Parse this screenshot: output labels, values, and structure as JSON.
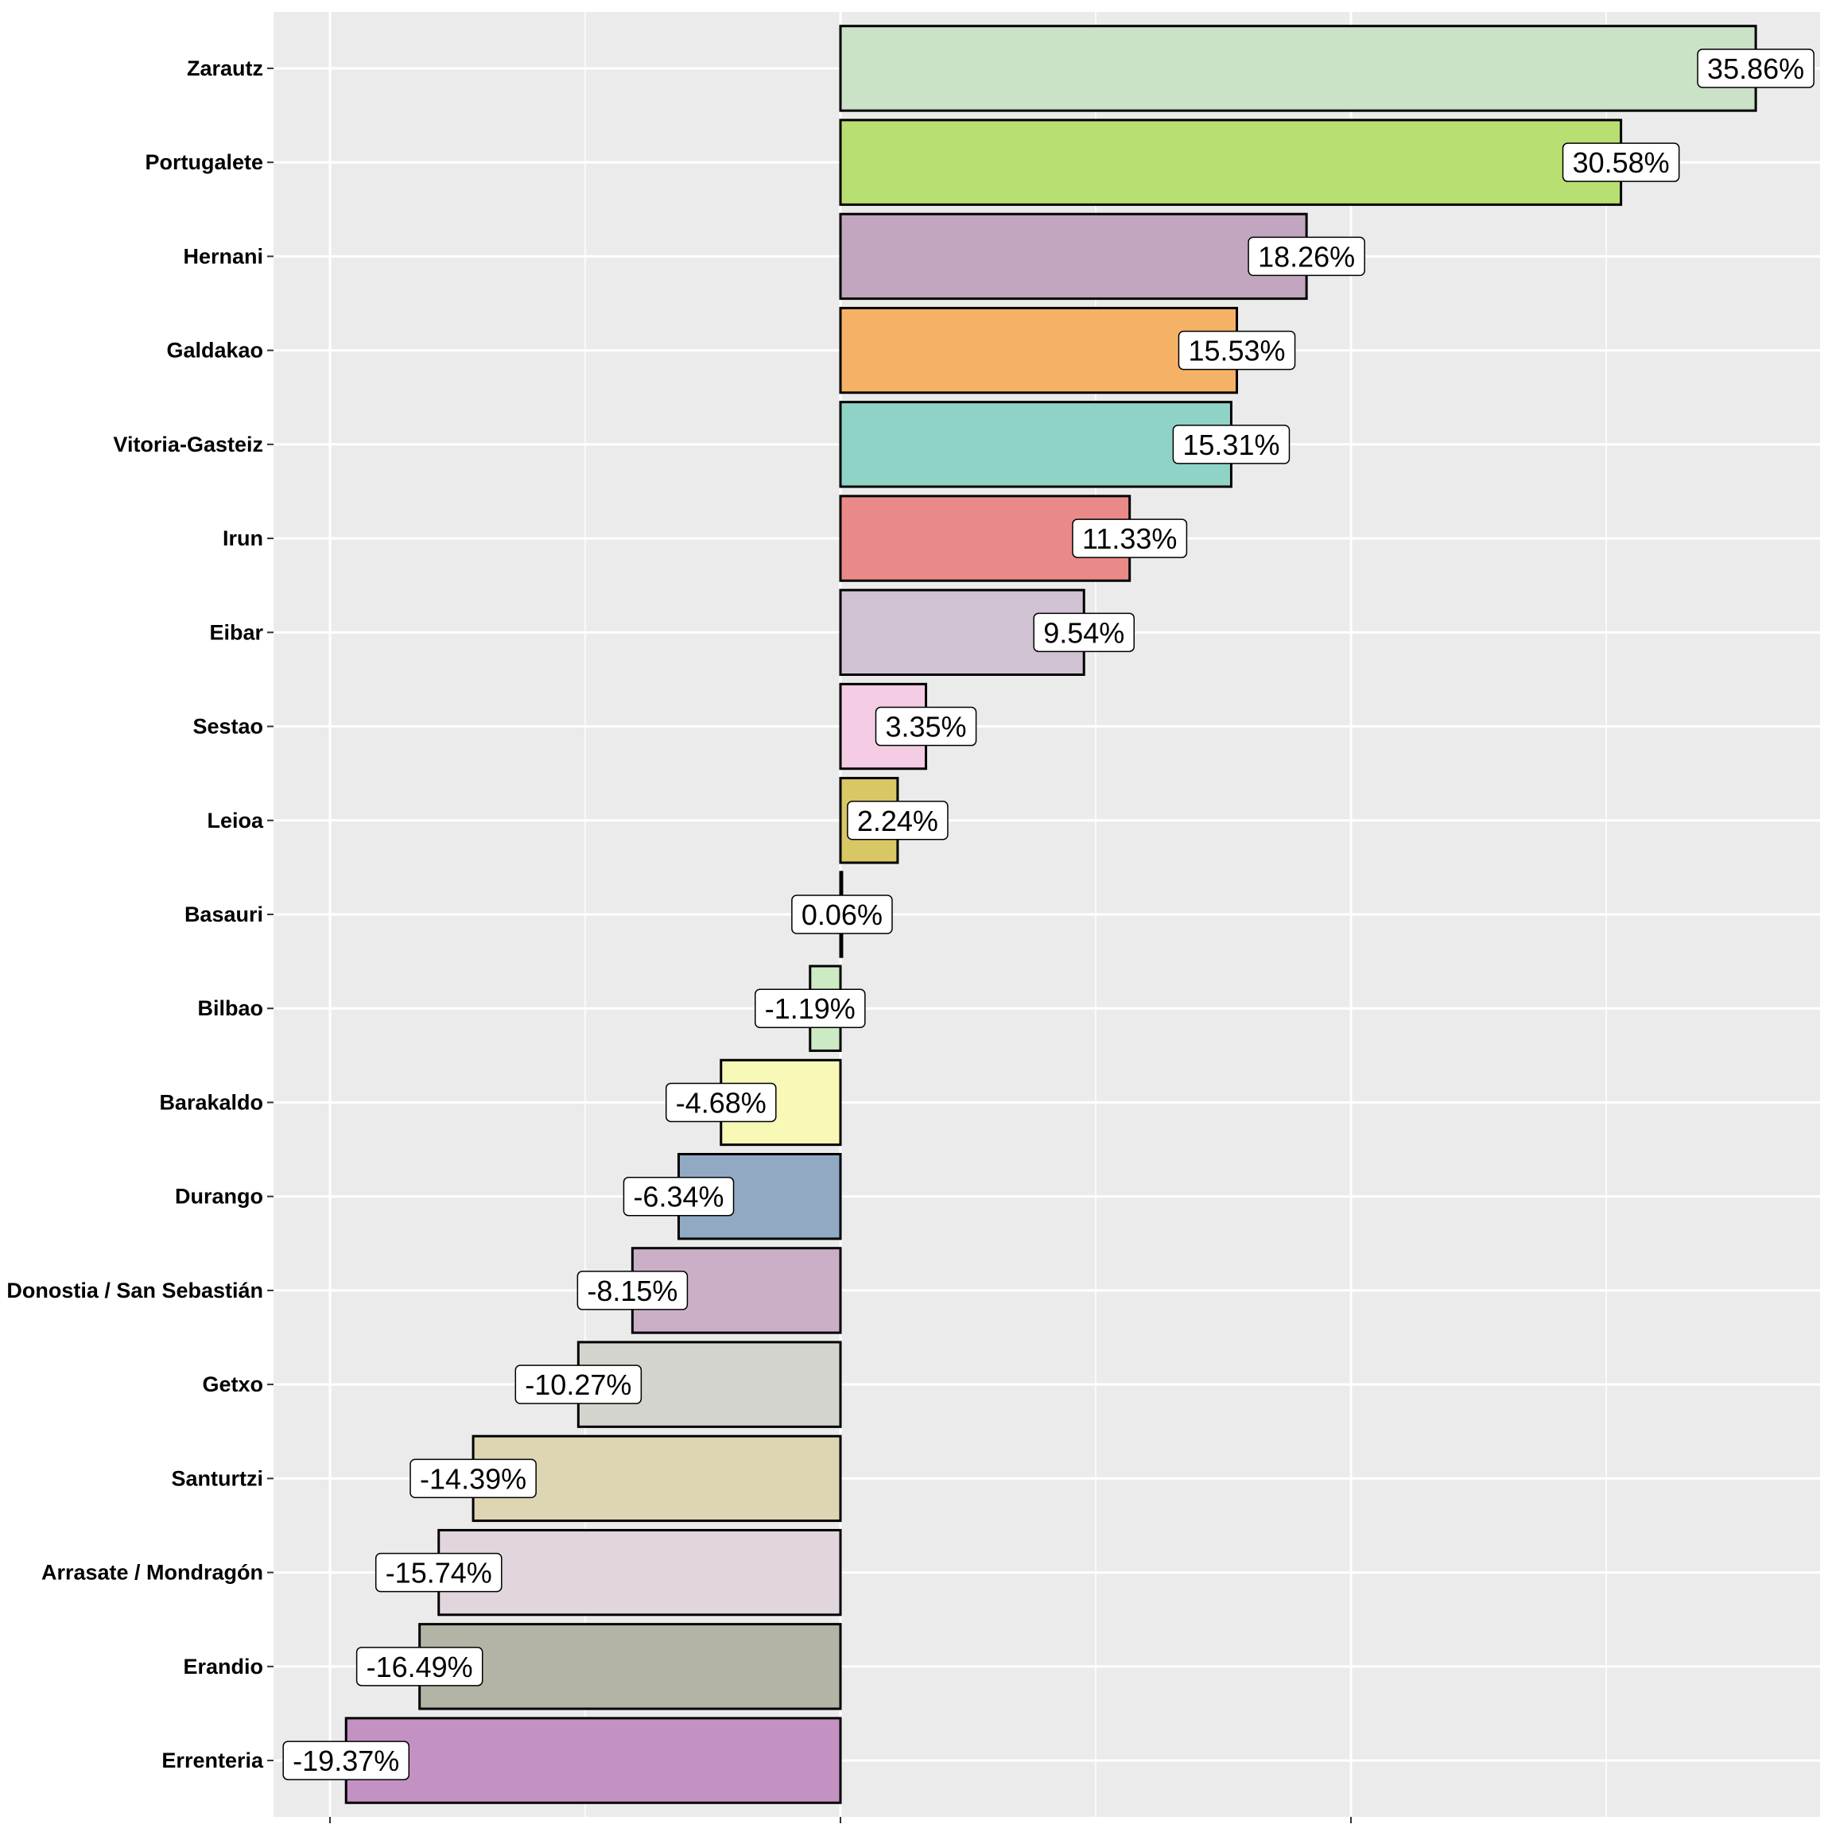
{
  "chart_data": {
    "type": "bar",
    "orientation": "horizontal",
    "title": "",
    "xlabel": "",
    "ylabel": "",
    "xlim": [
      -20.5,
      38
    ],
    "x_major_ticks": [
      -20,
      0,
      20
    ],
    "x_minor_gridlines": [
      -10,
      10,
      30
    ],
    "grid": true,
    "legend": "none",
    "categories": [
      "Zarautz",
      "Portugalete",
      "Hernani",
      "Galdakao",
      "Vitoria-Gasteiz",
      "Irun",
      "Eibar",
      "Sestao",
      "Leioa",
      "Basauri",
      "Bilbao",
      "Barakaldo",
      "Durango",
      "Donostia / San Sebastián",
      "Getxo",
      "Santurtzi",
      "Arrasate / Mondragón",
      "Erandio",
      "Errenteria"
    ],
    "values": [
      35.86,
      30.58,
      18.26,
      15.53,
      15.31,
      11.33,
      9.54,
      3.35,
      2.24,
      0.06,
      -1.19,
      -4.68,
      -6.34,
      -8.15,
      -10.27,
      -14.39,
      -15.74,
      -16.49,
      -19.37
    ],
    "value_labels": [
      "35.86%",
      "30.58%",
      "18.26%",
      "15.53%",
      "15.31%",
      "11.33%",
      "9.54%",
      "3.35%",
      "2.24%",
      "0.06%",
      "-1.19%",
      "-4.68%",
      "-6.34%",
      "-8.15%",
      "-10.27%",
      "-14.39%",
      "-15.74%",
      "-16.49%",
      "-19.37%"
    ],
    "colors": [
      "#CCE2C8",
      "#B8DF71",
      "#C2A5BE",
      "#F5B266",
      "#8FD3C7",
      "#EA8A88",
      "#D0C2D3",
      "#F4CCE3",
      "#D8C765",
      "#F3E2D0",
      "#CCEBC4",
      "#F8F8B7",
      "#92A9C4",
      "#CBAFC7",
      "#D4D4CE",
      "#DED5B3",
      "#E1D6DD",
      "#B3B4A6",
      "#C391C2"
    ],
    "panel_background": "#EBEBEB",
    "gridline_color": "#FFFFFF"
  }
}
